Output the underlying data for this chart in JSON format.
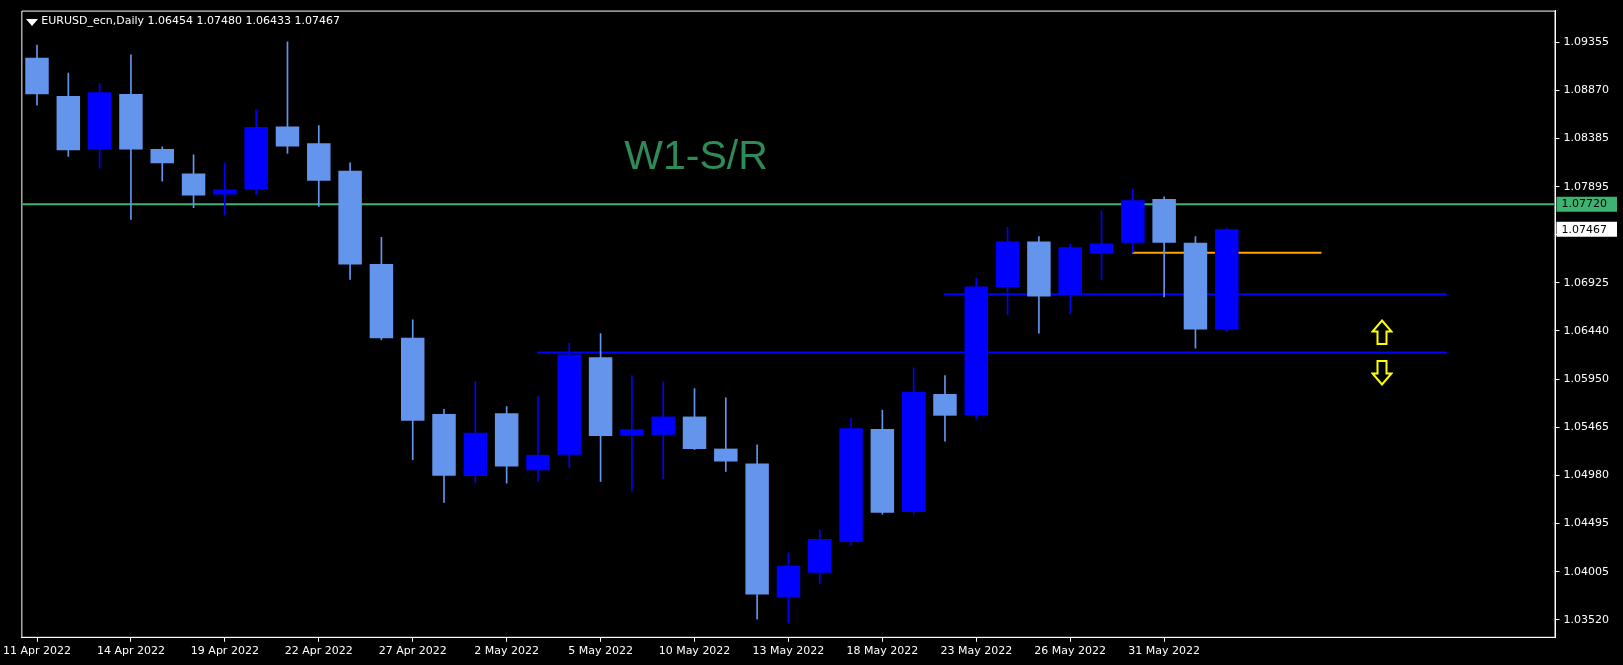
{
  "chart_data": {
    "type": "candlestick",
    "title": "EURUSD_ecn,Daily 1.06454 1.07480 1.06433 1.07467",
    "categories": [
      "11 Apr 2022",
      null,
      null,
      "14 Apr 2022",
      null,
      null,
      "19 Apr 2022",
      null,
      null,
      "22 Apr 2022",
      null,
      null,
      "27 Apr 2022",
      null,
      null,
      "2 May 2022",
      null,
      null,
      "5 May 2022",
      null,
      null,
      "10 May 2022",
      null,
      null,
      "13 May 2022",
      null,
      null,
      "18 May 2022",
      null,
      null,
      "23 May 2022",
      null,
      null,
      "26 May 2022",
      null,
      null,
      "31 May 2022",
      null,
      null,
      null,
      null,
      null,
      null,
      null,
      null,
      null,
      null,
      null,
      null
    ],
    "ohlc": [
      [
        1.09199,
        1.09326,
        1.08719,
        1.08829
      ],
      [
        1.08812,
        1.09043,
        1.08201,
        1.08265
      ],
      [
        1.08273,
        1.08938,
        1.08084,
        1.0885
      ],
      [
        1.08833,
        1.09229,
        1.07566,
        1.08273
      ],
      [
        1.08277,
        1.08298,
        1.07953,
        1.08134
      ],
      [
        1.08029,
        1.08218,
        1.07684,
        1.07806
      ],
      [
        1.07818,
        1.08138,
        1.07608,
        1.07869
      ],
      [
        1.07869,
        1.08673,
        1.07818,
        1.085
      ],
      [
        1.08505,
        1.09359,
        1.08231,
        1.08302
      ],
      [
        1.08336,
        1.08513,
        1.07696,
        1.07957
      ],
      [
        1.08058,
        1.08138,
        1.0696,
        1.07111
      ],
      [
        1.07115,
        1.07385,
        1.06349,
        1.06366
      ],
      [
        1.0637,
        1.06551,
        1.05137,
        1.05532
      ],
      [
        1.056,
        1.05646,
        1.04707,
        1.04977
      ],
      [
        1.04973,
        1.05928,
        1.04909,
        1.0541
      ],
      [
        1.05608,
        1.05675,
        1.04901,
        1.05069
      ],
      [
        1.05031,
        1.05776,
        1.04918,
        1.05187
      ],
      [
        1.05187,
        1.06315,
        1.05057,
        1.06202
      ],
      [
        1.06172,
        1.06412,
        1.04918,
        1.05377
      ],
      [
        1.05381,
        1.05987,
        1.04821,
        1.05444
      ],
      [
        1.05389,
        1.05924,
        1.04947,
        1.05574
      ],
      [
        1.05574,
        1.05856,
        1.0524,
        1.05246
      ],
      [
        1.0525,
        1.05764,
        1.05019,
        1.0512
      ],
      [
        1.05099,
        1.05288,
        1.03528,
        1.03777
      ],
      [
        1.03751,
        1.04198,
        1.0349,
        1.04067
      ],
      [
        1.03996,
        1.04429,
        1.03886,
        1.04337
      ],
      [
        1.04307,
        1.05558,
        1.04274,
        1.05457
      ],
      [
        1.05448,
        1.05638,
        1.04589,
        1.04602
      ],
      [
        1.0461,
        1.06067,
        1.04589,
        1.05823
      ],
      [
        1.05802,
        1.05987,
        1.05326,
        1.05583
      ],
      [
        1.05587,
        1.06976,
        1.05545,
        1.06888
      ],
      [
        1.06884,
        1.07486,
        1.06602,
        1.07343
      ],
      [
        1.07343,
        1.07393,
        1.06416,
        1.06787
      ],
      [
        1.06799,
        1.07313,
        1.06614,
        1.07284
      ],
      [
        1.07225,
        1.07654,
        1.0696,
        1.07322
      ],
      [
        1.0733,
        1.07873,
        1.07233,
        1.07759
      ],
      [
        1.07772,
        1.07793,
        1.06783,
        1.0733
      ],
      [
        1.0733,
        1.07393,
        1.06265,
        1.06454
      ],
      [
        1.06454,
        1.0748,
        1.06433,
        1.07467
      ],
      null,
      null,
      null,
      null,
      null,
      null,
      null,
      null,
      null,
      null
    ],
    "colors": [
      "#6495ed",
      "#6495ed",
      "#0000ff",
      "#6495ed",
      "#6495ed",
      "#6495ed",
      "#0000ff",
      "#0000ff",
      "#6495ed",
      "#6495ed",
      "#6495ed",
      "#6495ed",
      "#6495ed",
      "#6495ed",
      "#0000ff",
      "#6495ed",
      "#0000ff",
      "#0000ff",
      "#6495ed",
      "#0000ff",
      "#0000ff",
      "#6495ed",
      "#6495ed",
      "#6495ed",
      "#0000ff",
      "#0000ff",
      "#0000ff",
      "#6495ed",
      "#0000ff",
      "#6495ed",
      "#0000ff",
      "#0000ff",
      "#6495ed",
      "#0000ff",
      "#0000ff",
      "#0000ff",
      "#6495ed",
      "#6495ed",
      "#0000ff",
      null,
      null,
      null,
      null,
      null,
      null,
      null,
      null,
      null,
      null
    ],
    "ylim": [
      1.03339,
      1.09675
    ],
    "yticks": [
      {
        "value": 1.0352,
        "label": "1.03520"
      },
      1.04005,
      1.04495,
      {
        "value": 1.0498,
        "label": "1.04980"
      },
      1.05465,
      {
        "value": 1.0595,
        "label": "1.05950"
      },
      {
        "value": 1.0644,
        "label": "1.06440"
      },
      1.06925,
      {
        "value": 1.0741,
        "label": null
      },
      1.07895,
      1.08385,
      {
        "value": 1.0887,
        "label": "1.08870"
      },
      1.09355
    ],
    "series": [
      {
        "type": "line",
        "color": "#0000ff",
        "values": [
          null,
          null,
          null,
          null,
          null,
          null,
          null,
          null,
          null,
          null,
          null,
          null,
          null,
          null,
          null,
          null,
          1.0622,
          1.0622,
          1.0622,
          1.0622,
          1.0622,
          1.0622,
          1.0622,
          1.0622,
          1.0622,
          1.0622,
          1.0622,
          1.0622,
          1.0622,
          1.0622,
          null,
          1.0622,
          1.0622,
          1.0622,
          1.0622,
          1.0622,
          1.0622,
          1.0622,
          1.0622,
          1.0622,
          1.0622,
          1.0622,
          1.0622,
          1.0622,
          1.0622,
          1.0622,
          null,
          null,
          null
        ]
      },
      {
        "type": "line",
        "color": "#0000ff",
        "values": [
          null,
          null,
          null,
          null,
          null,
          null,
          null,
          null,
          null,
          null,
          null,
          null,
          null,
          null,
          null,
          null,
          null,
          null,
          null,
          null,
          null,
          null,
          null,
          null,
          null,
          null,
          null,
          null,
          null,
          1.0681,
          null,
          1.0681,
          null,
          1.0681,
          1.0681,
          1.0681,
          1.0681,
          null,
          null,
          1.0681,
          1.0681,
          1.0681,
          1.0681,
          1.0681,
          1.0681,
          1.0681,
          null,
          null,
          null
        ]
      },
      {
        "type": "line",
        "color": "#ffa500",
        "values": [
          null,
          null,
          null,
          null,
          null,
          null,
          null,
          null,
          null,
          null,
          null,
          null,
          null,
          null,
          null,
          null,
          null,
          null,
          null,
          null,
          null,
          null,
          null,
          null,
          null,
          null,
          null,
          null,
          null,
          null,
          null,
          null,
          null,
          null,
          null,
          1.0723,
          1.0723,
          null,
          null,
          1.0723,
          1.0723,
          1.0723,
          null,
          null,
          null,
          null,
          null,
          null,
          null
        ]
      }
    ],
    "ref_lines": [
      {
        "axis": "y",
        "value": 1.0772,
        "label": "1.07720",
        "color": "#3cb371"
      }
    ],
    "annotations": [
      "W1-S/R",
      "1.07467"
    ]
  }
}
